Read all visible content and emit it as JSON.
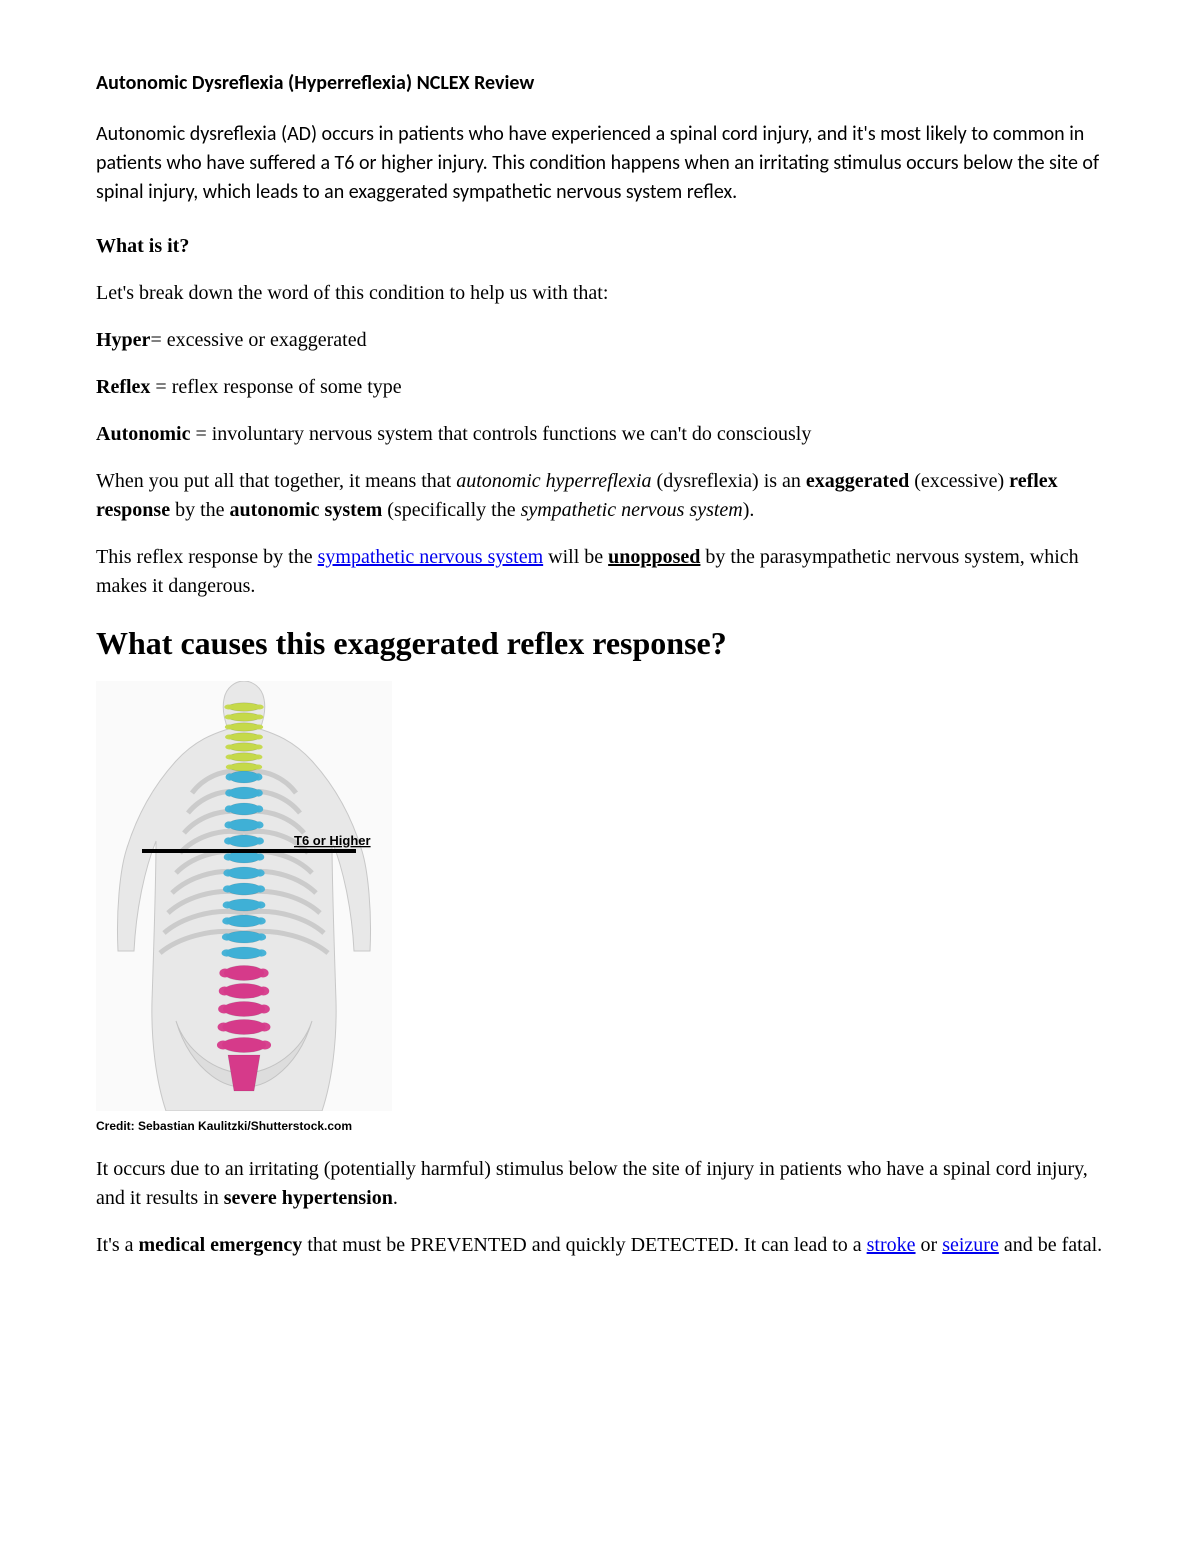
{
  "title": "Autonomic Dysreflexia (Hyperreflexia) NCLEX Review",
  "intro": "Autonomic dysreflexia (AD) occurs in patients who have experienced a spinal cord injury, and it's most likely to common in patients who have suffered a T6 or higher injury. This condition happens when an irritating stimulus occurs below the site of spinal injury, which leads to an exaggerated sympathetic nervous system reflex.",
  "what_heading": "What is it?",
  "breakdown_intro": "Let's break down the word of this condition to help us with that:",
  "def_hyper_label": "Hyper",
  "def_hyper_text": "= excessive or exaggerated",
  "def_reflex_label": "Reflex",
  "def_reflex_text": " = reflex response of some type",
  "def_auto_label": "Autonomic",
  "def_auto_text": " = involuntary nervous system that controls functions we can't do consciously",
  "combined_pre": "When you put all that together, it means that ",
  "combined_italic1": "autonomic hyperreflexia",
  "combined_mid1": " (dysreflexia) is an ",
  "combined_b1": "exaggerated",
  "combined_mid2": " (excessive) ",
  "combined_b2": "reflex response",
  "combined_mid3": " by the ",
  "combined_b3": "autonomic system",
  "combined_mid4": " (specifically the ",
  "combined_italic2": "sympathetic nervous system",
  "combined_end": ").",
  "reflex_pre": "This reflex response by the ",
  "reflex_link": "sympathetic nervous system",
  "reflex_mid": " will be ",
  "reflex_bu": "unopposed",
  "reflex_end": " by the parasympathetic nervous system, which makes it dangerous.",
  "causes_heading": "What causes this exaggerated reflex response?",
  "figure": {
    "label_text": "T6 or Higher",
    "credit": "Credit: Sebastian Kaulitzki/Shutterstock.com",
    "colors": {
      "bg": "#fafafa",
      "body_fill": "#e8e8e8",
      "body_stroke": "#c8c8c8",
      "cervical": "#c5d94a",
      "thoracic": "#3fb0d6",
      "lumbar": "#d63a8a",
      "rib": "#dcdcdc",
      "rib_stroke": "#bfbfbf",
      "line": "#000000"
    }
  },
  "occurs_pre": "It occurs due to an irritating (potentially harmful) stimulus below the site of injury in patients who have a spinal cord injury, and it results in ",
  "occurs_b": "severe hypertension",
  "occurs_end": ".",
  "emerg_pre": "It's a ",
  "emerg_b": "medical emergency",
  "emerg_mid1": " that must be PREVENTED and quickly DETECTED. It can lead to a ",
  "emerg_link1": "stroke",
  "emerg_mid2": " or ",
  "emerg_link2": "seizure",
  "emerg_end": " and be fatal."
}
